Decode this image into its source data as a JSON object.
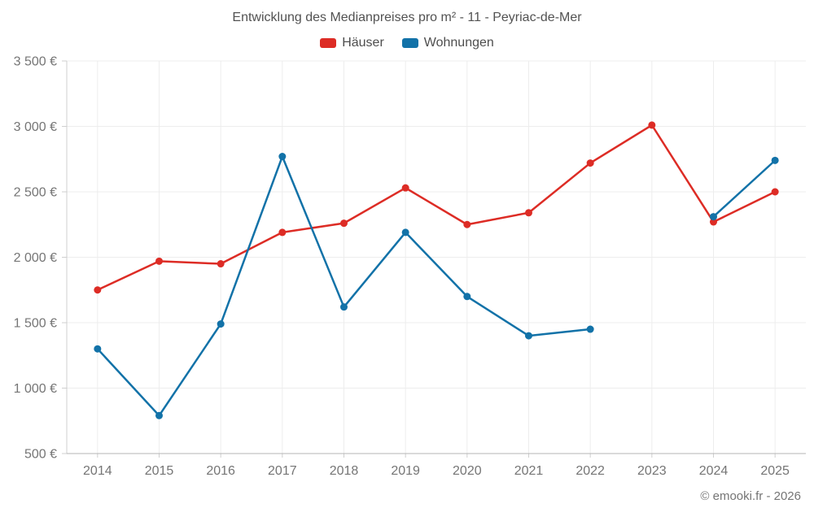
{
  "chart_data": {
    "type": "line",
    "title": "Entwicklung des Medianpreises pro m² - 11 - Peyriac-de-Mer",
    "categories": [
      "2014",
      "2015",
      "2016",
      "2017",
      "2018",
      "2019",
      "2020",
      "2021",
      "2022",
      "2023",
      "2024",
      "2025"
    ],
    "series": [
      {
        "name": "Häuser",
        "color": "#dd2c25",
        "values": [
          1750,
          1970,
          1950,
          2190,
          2260,
          2530,
          2250,
          2340,
          2720,
          3010,
          2270,
          2500
        ]
      },
      {
        "name": "Wohnungen",
        "color": "#1272a8",
        "values": [
          1300,
          790,
          1490,
          2770,
          1620,
          2190,
          1700,
          1400,
          1450,
          null,
          2310,
          2740
        ]
      }
    ],
    "ylim": [
      500,
      3500
    ],
    "ytick_step": 500,
    "y_tick_labels": [
      "500 €",
      "1 000 €",
      "1 500 €",
      "2 000 €",
      "2 500 €",
      "3 000 €",
      "3 500 €"
    ],
    "y_suffix": "€",
    "grid": true,
    "legend_position": "top",
    "colors": {
      "grid": "#ededed",
      "axis": "#b5b5b5",
      "tick": "#cfcfcf",
      "axis_label_text": "#757575",
      "title_text": "#525252"
    }
  },
  "footer": {
    "copyright": "© emooki.fr - 2026"
  }
}
